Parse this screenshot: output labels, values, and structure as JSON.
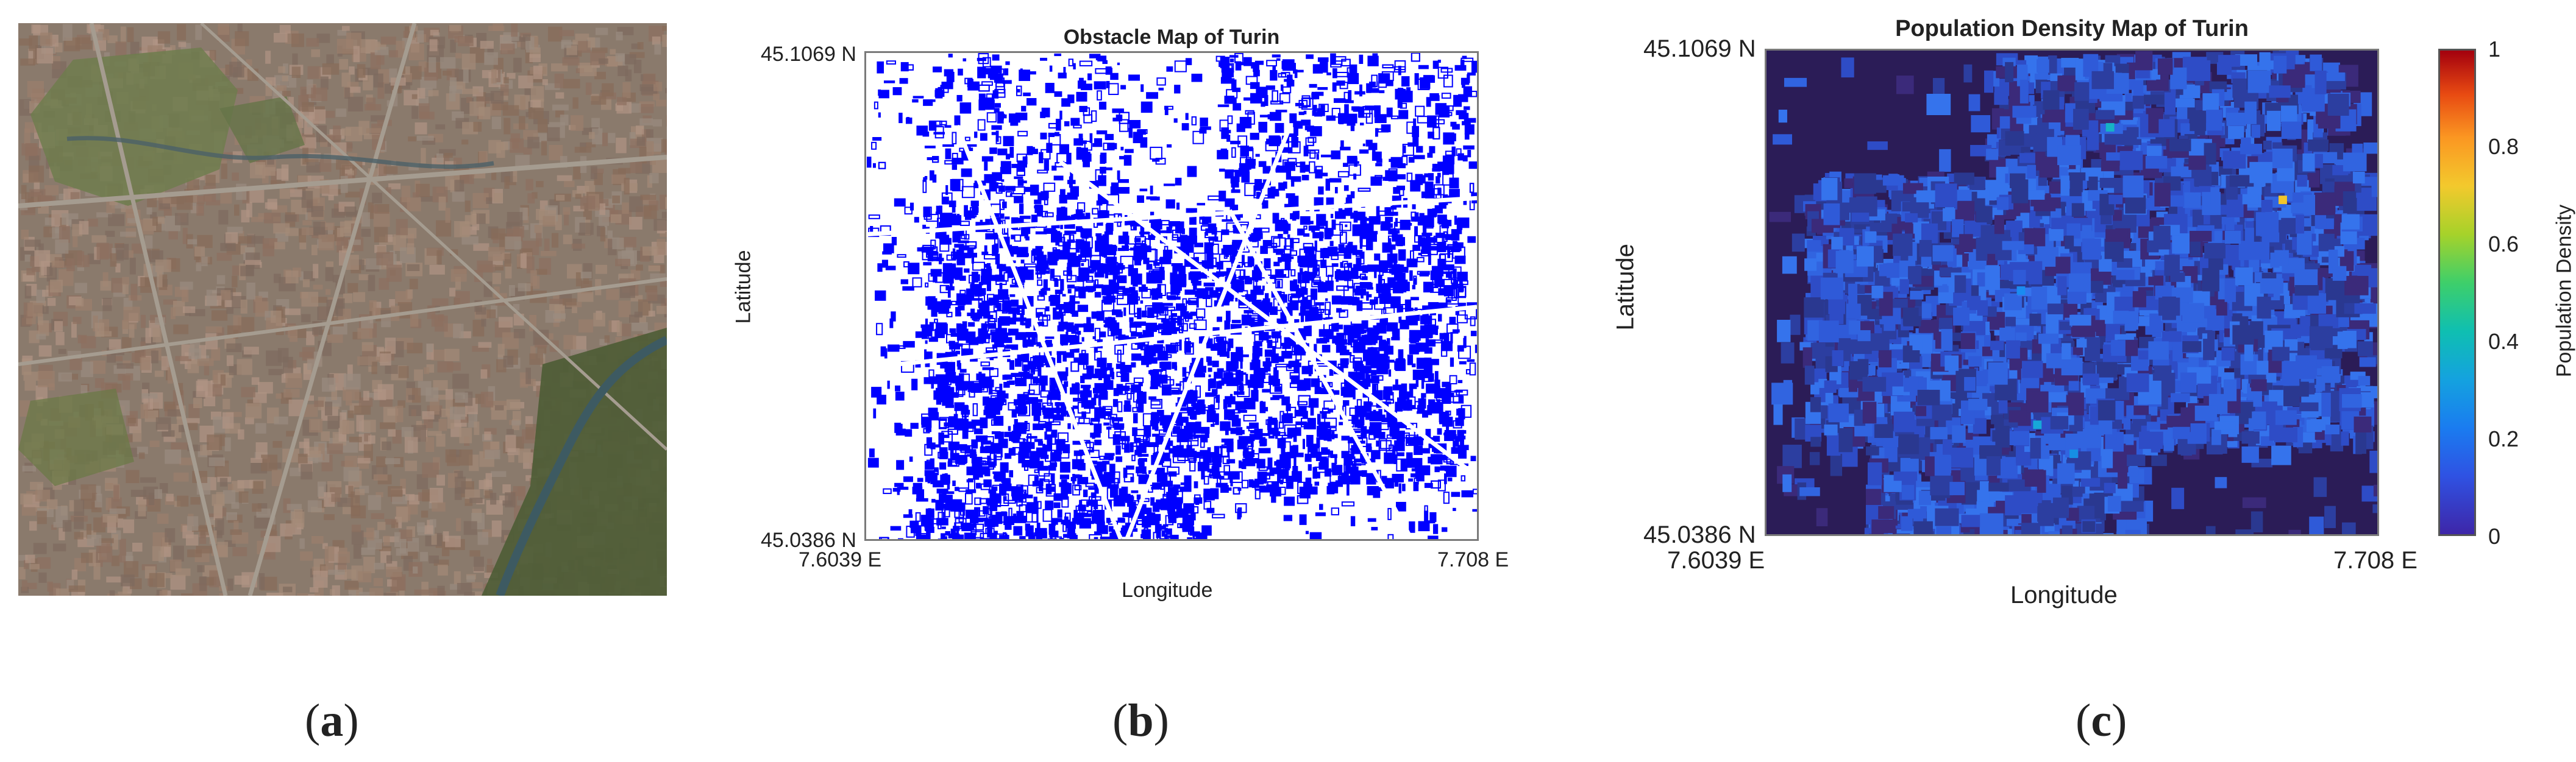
{
  "panel_a": {
    "caption": "(a)"
  },
  "panel_b": {
    "title": "Obstacle Map of Turin",
    "lat_top": "45.1069 N",
    "lat_bottom": "45.0386 N",
    "lon_left": "7.6039 E",
    "lon_right": "7.708 E",
    "xlabel": "Longitude",
    "ylabel": "Latitude",
    "caption": "(b)",
    "obstacle_color": "#0000ff"
  },
  "panel_c": {
    "title": "Population Density Map of Turin",
    "lat_top": "45.1069 N",
    "lat_bottom": "45.0386 N",
    "lon_left": "7.6039 E",
    "lon_right": "7.708 E",
    "xlabel": "Longitude",
    "ylabel": "Latitude",
    "caption": "(c)",
    "colorbar": {
      "label": "Population Density",
      "ticks": [
        "1",
        "0.8",
        "0.6",
        "0.4",
        "0.2",
        "0"
      ],
      "range": [
        0,
        1
      ]
    }
  }
}
